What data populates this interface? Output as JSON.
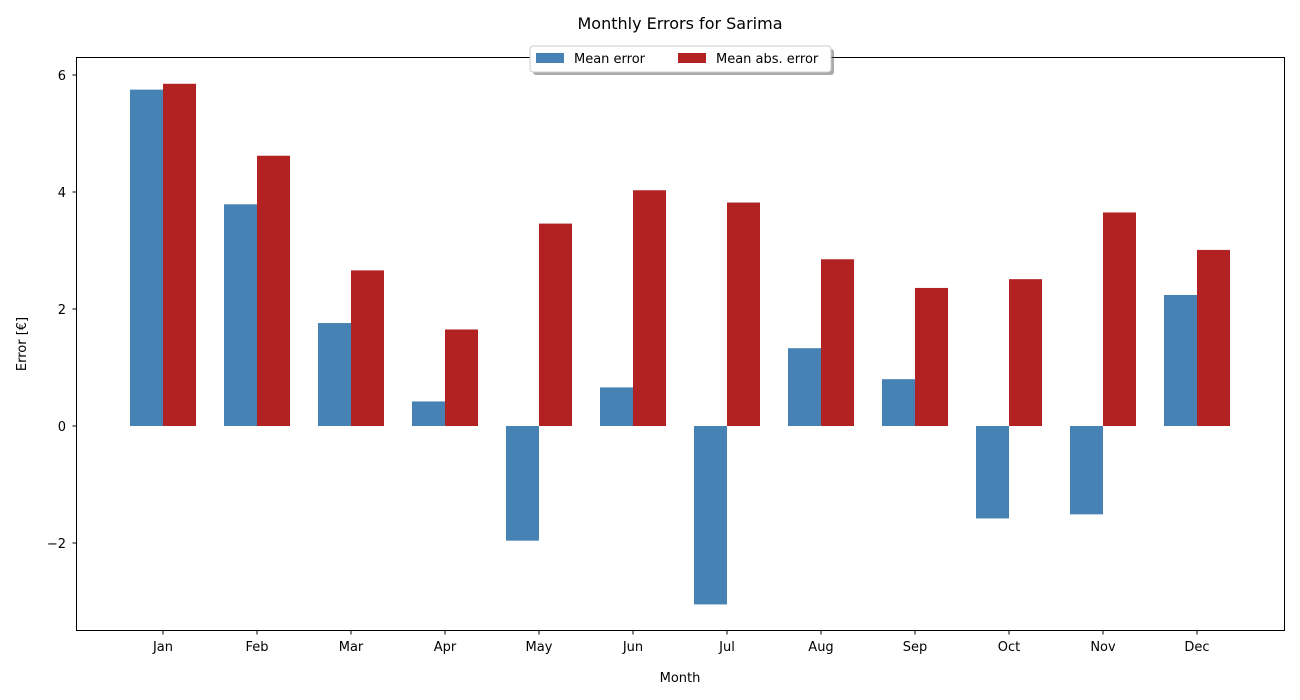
{
  "chart_data": {
    "type": "bar",
    "title": "Monthly Errors for Sarima",
    "xlabel": "Month",
    "ylabel": "Error [€]",
    "categories": [
      "Jan",
      "Feb",
      "Mar",
      "Apr",
      "May",
      "Jun",
      "Jul",
      "Aug",
      "Sep",
      "Oct",
      "Nov",
      "Dec"
    ],
    "series": [
      {
        "name": "Mean error",
        "color": "#4682b4",
        "values": [
          5.75,
          3.79,
          1.76,
          0.42,
          -1.96,
          0.66,
          -3.05,
          1.33,
          0.8,
          -1.58,
          -1.51,
          2.24
        ]
      },
      {
        "name": "Mean abs. error",
        "color": "#b22222",
        "values": [
          5.85,
          4.62,
          2.66,
          1.65,
          3.46,
          4.03,
          3.82,
          2.85,
          2.36,
          2.51,
          3.65,
          3.01
        ]
      }
    ],
    "ylim": [
      -3.5,
      6.3
    ],
    "yticks": [
      6,
      4,
      2,
      0,
      -2
    ],
    "ytick_labels": [
      "6",
      "4",
      "2",
      "0",
      "−2"
    ],
    "grid": false,
    "legend_position": "top-center"
  }
}
